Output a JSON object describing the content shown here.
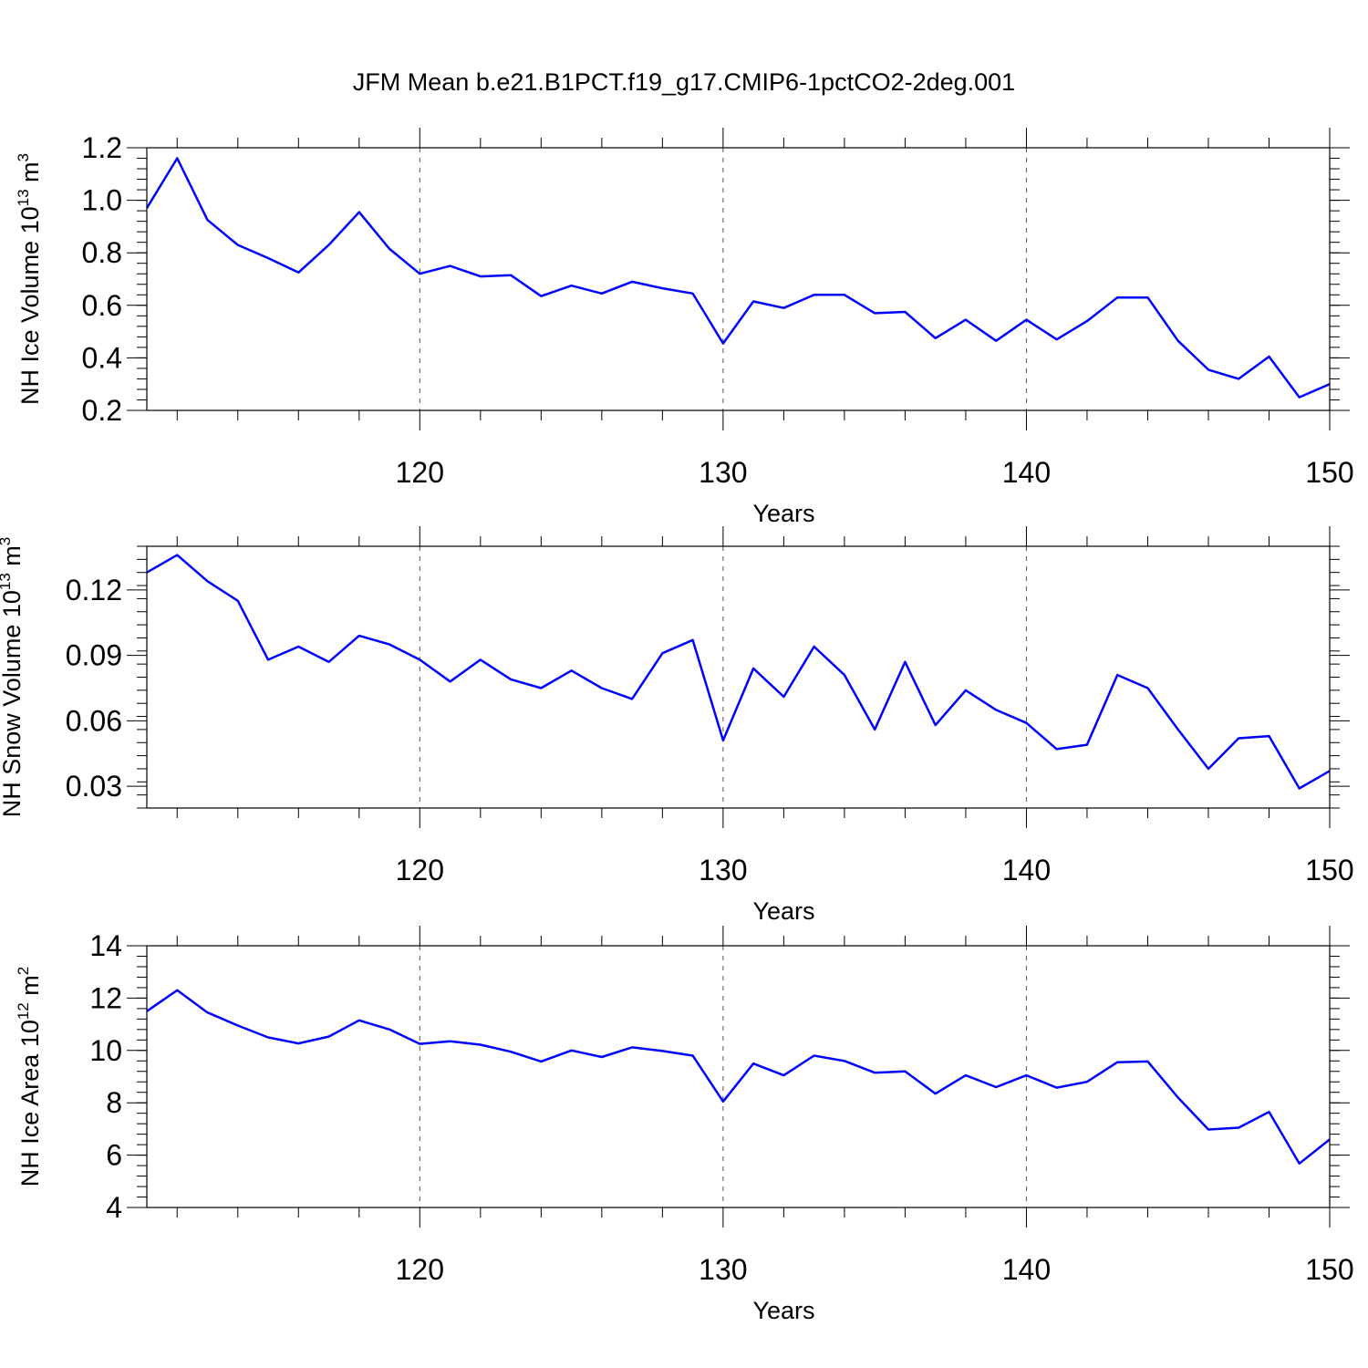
{
  "title": "JFM Mean b.e21.B1PCT.f19_g17.CMIP6-1pctCO2-2deg.001",
  "chart_data": [
    {
      "type": "line",
      "xlabel": "Years",
      "ylabel": "NH Ice Volume 10",
      "ylabel_exponent": "13",
      "ylabel_unit": " m",
      "ylabel_unit_exponent": "3",
      "xlim": [
        111,
        150
      ],
      "ylim": [
        0.2,
        1.2
      ],
      "x_ticks": [
        120,
        130,
        140,
        150
      ],
      "y_ticks": [
        "0.2",
        "0.4",
        "0.6",
        "0.8",
        "1.0",
        "1.2"
      ],
      "y_minor_step": 0.04,
      "grid": "vertical dashed at major x ticks",
      "line_color": "#0000ff",
      "x": [
        111,
        112,
        113,
        114,
        115,
        116,
        117,
        118,
        119,
        120,
        121,
        122,
        123,
        124,
        125,
        126,
        127,
        128,
        129,
        130,
        131,
        132,
        133,
        134,
        135,
        136,
        137,
        138,
        139,
        140,
        141,
        142,
        143,
        144,
        145,
        146,
        147,
        148,
        149,
        150
      ],
      "values": [
        0.97,
        1.16,
        0.925,
        0.83,
        0.78,
        0.725,
        0.83,
        0.955,
        0.815,
        0.72,
        0.75,
        0.71,
        0.715,
        0.635,
        0.675,
        0.645,
        0.69,
        0.665,
        0.645,
        0.455,
        0.615,
        0.59,
        0.64,
        0.64,
        0.57,
        0.575,
        0.475,
        0.545,
        0.465,
        0.545,
        0.47,
        0.54,
        0.63,
        0.63,
        0.465,
        0.355,
        0.32,
        0.405,
        0.25,
        0.3
      ]
    },
    {
      "type": "line",
      "xlabel": "Years",
      "ylabel": "NH Snow Volume 10",
      "ylabel_exponent": "13",
      "ylabel_unit": " m",
      "ylabel_unit_exponent": "3",
      "xlim": [
        111,
        150
      ],
      "ylim": [
        0.02,
        0.14
      ],
      "x_ticks": [
        120,
        130,
        140,
        150
      ],
      "y_ticks": [
        "0.03",
        "0.06",
        "0.09",
        "0.12"
      ],
      "y_minor_step": 0.006,
      "grid": "vertical dashed at major x ticks",
      "line_color": "#0000ff",
      "x": [
        111,
        112,
        113,
        114,
        115,
        116,
        117,
        118,
        119,
        120,
        121,
        122,
        123,
        124,
        125,
        126,
        127,
        128,
        129,
        130,
        131,
        132,
        133,
        134,
        135,
        136,
        137,
        138,
        139,
        140,
        141,
        142,
        143,
        144,
        145,
        146,
        147,
        148,
        149,
        150
      ],
      "values": [
        0.128,
        0.136,
        0.124,
        0.115,
        0.088,
        0.094,
        0.087,
        0.099,
        0.095,
        0.088,
        0.078,
        0.088,
        0.079,
        0.075,
        0.083,
        0.075,
        0.07,
        0.091,
        0.097,
        0.051,
        0.084,
        0.071,
        0.094,
        0.081,
        0.056,
        0.087,
        0.058,
        0.074,
        0.065,
        0.059,
        0.047,
        0.049,
        0.081,
        0.075,
        0.056,
        0.038,
        0.052,
        0.053,
        0.029,
        0.037
      ]
    },
    {
      "type": "line",
      "xlabel": "Years",
      "ylabel": "NH Ice Area 10",
      "ylabel_exponent": "12",
      "ylabel_unit": " m",
      "ylabel_unit_exponent": "2",
      "xlim": [
        111,
        150
      ],
      "ylim": [
        4,
        14
      ],
      "x_ticks": [
        120,
        130,
        140,
        150
      ],
      "y_ticks": [
        "4",
        "6",
        "8",
        "10",
        "12",
        "14"
      ],
      "y_minor_step": 0.4,
      "grid": "vertical dashed at major x ticks",
      "line_color": "#0000ff",
      "x": [
        111,
        112,
        113,
        114,
        115,
        116,
        117,
        118,
        119,
        120,
        121,
        122,
        123,
        124,
        125,
        126,
        127,
        128,
        129,
        130,
        131,
        132,
        133,
        134,
        135,
        136,
        137,
        138,
        139,
        140,
        141,
        142,
        143,
        144,
        145,
        146,
        147,
        148,
        149,
        150
      ],
      "values": [
        11.5,
        12.3,
        11.45,
        10.95,
        10.5,
        10.27,
        10.53,
        11.15,
        10.8,
        10.25,
        10.35,
        10.22,
        9.95,
        9.58,
        10.0,
        9.75,
        10.12,
        9.98,
        9.8,
        8.05,
        9.5,
        9.05,
        9.8,
        9.6,
        9.15,
        9.2,
        8.35,
        9.05,
        8.6,
        9.05,
        8.58,
        8.8,
        9.55,
        9.58,
        8.2,
        6.98,
        7.05,
        7.65,
        5.68,
        6.6
      ]
    }
  ]
}
